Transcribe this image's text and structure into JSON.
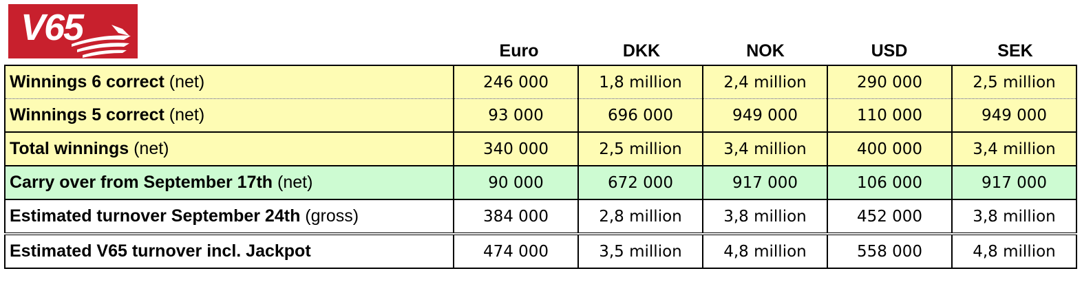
{
  "logo": {
    "text": "V65"
  },
  "columns": [
    "Euro",
    "DKK",
    "NOK",
    "USD",
    "SEK"
  ],
  "rows": [
    {
      "label": "Winnings 6 correct",
      "suffix": "(net)",
      "values": [
        "246 000",
        "1,8 million",
        "2,4 million",
        "290 000",
        "2,5 million"
      ],
      "style": "yellow"
    },
    {
      "label": "Winnings 5 correct",
      "suffix": "(net)",
      "values": [
        "93 000",
        "696 000",
        "949 000",
        "110 000",
        "949 000"
      ],
      "style": "yellow"
    },
    {
      "label": "Total winnings",
      "suffix": "(net)",
      "values": [
        "340 000",
        "2,5 million",
        "3,4 million",
        "400 000",
        "3,4 million"
      ],
      "style": "yellow"
    },
    {
      "label": "Carry over from September 17th",
      "suffix": "(net)",
      "values": [
        "90 000",
        "672 000",
        "917 000",
        "106 000",
        "917 000"
      ],
      "style": "green"
    },
    {
      "label": "Estimated turnover September 24th",
      "suffix": "(gross)",
      "values": [
        "384 000",
        "2,8 million",
        "3,8 million",
        "452 000",
        "3,8 million"
      ],
      "style": "white"
    },
    {
      "label": "Estimated V65 turnover incl. Jackpot",
      "suffix": "",
      "values": [
        "474 000",
        "3,5 million",
        "4,8 million",
        "558 000",
        "4,8 million"
      ],
      "style": "white"
    }
  ],
  "colors": {
    "logo_red": "#c8202d",
    "yellow_row": "#fefcb4",
    "green_row": "#cdfbd2"
  }
}
